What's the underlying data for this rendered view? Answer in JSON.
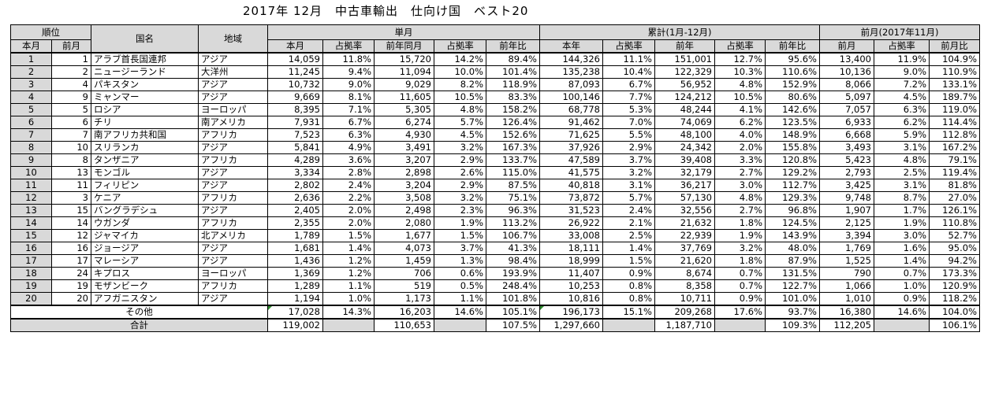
{
  "title": "2017年 12月　中古車輸出　仕向け国　ベスト20",
  "headers": {
    "rank": "順位",
    "country": "国名",
    "region": "地域",
    "monthly": "単月",
    "cumulative": "累計(1月-12月)",
    "prev_month": "前月(2017年11月)",
    "this_month": "本月",
    "last_month": "前月",
    "share": "占拠率",
    "prev_year_same_month": "前年同月",
    "yoy": "前年比",
    "this_year": "本年",
    "prev_year": "前年",
    "mom": "前月比"
  },
  "rows": [
    {
      "rank": "1",
      "prev_rank": "1",
      "country": "アラブ首長国連邦",
      "region": "アジア",
      "m_cur": "14,059",
      "m_share": "11.8%",
      "m_prev": "15,720",
      "m_prev_share": "14.2%",
      "m_yoy": "89.4%",
      "c_cur": "144,326",
      "c_share": "11.1%",
      "c_prev": "151,001",
      "c_prev_share": "12.7%",
      "c_yoy": "95.6%",
      "pm": "13,400",
      "pm_share": "11.9%",
      "pm_ratio": "104.9%"
    },
    {
      "rank": "2",
      "prev_rank": "2",
      "country": "ニュージーランド",
      "region": "大洋州",
      "m_cur": "11,245",
      "m_share": "9.4%",
      "m_prev": "11,094",
      "m_prev_share": "10.0%",
      "m_yoy": "101.4%",
      "c_cur": "135,238",
      "c_share": "10.4%",
      "c_prev": "122,329",
      "c_prev_share": "10.3%",
      "c_yoy": "110.6%",
      "pm": "10,136",
      "pm_share": "9.0%",
      "pm_ratio": "110.9%"
    },
    {
      "rank": "3",
      "prev_rank": "4",
      "country": "パキスタン",
      "region": "アジア",
      "m_cur": "10,732",
      "m_share": "9.0%",
      "m_prev": "9,029",
      "m_prev_share": "8.2%",
      "m_yoy": "118.9%",
      "c_cur": "87,093",
      "c_share": "6.7%",
      "c_prev": "56,952",
      "c_prev_share": "4.8%",
      "c_yoy": "152.9%",
      "pm": "8,066",
      "pm_share": "7.2%",
      "pm_ratio": "133.1%"
    },
    {
      "rank": "4",
      "prev_rank": "9",
      "country": "ミャンマー",
      "region": "アジア",
      "m_cur": "9,669",
      "m_share": "8.1%",
      "m_prev": "11,605",
      "m_prev_share": "10.5%",
      "m_yoy": "83.3%",
      "c_cur": "100,146",
      "c_share": "7.7%",
      "c_prev": "124,212",
      "c_prev_share": "10.5%",
      "c_yoy": "80.6%",
      "pm": "5,097",
      "pm_share": "4.5%",
      "pm_ratio": "189.7%"
    },
    {
      "rank": "5",
      "prev_rank": "5",
      "country": "ロシア",
      "region": "ヨーロッパ",
      "m_cur": "8,395",
      "m_share": "7.1%",
      "m_prev": "5,305",
      "m_prev_share": "4.8%",
      "m_yoy": "158.2%",
      "c_cur": "68,778",
      "c_share": "5.3%",
      "c_prev": "48,244",
      "c_prev_share": "4.1%",
      "c_yoy": "142.6%",
      "pm": "7,057",
      "pm_share": "6.3%",
      "pm_ratio": "119.0%"
    },
    {
      "rank": "6",
      "prev_rank": "6",
      "country": "チリ",
      "region": "南アメリカ",
      "m_cur": "7,931",
      "m_share": "6.7%",
      "m_prev": "6,274",
      "m_prev_share": "5.7%",
      "m_yoy": "126.4%",
      "c_cur": "91,462",
      "c_share": "7.0%",
      "c_prev": "74,069",
      "c_prev_share": "6.2%",
      "c_yoy": "123.5%",
      "pm": "6,933",
      "pm_share": "6.2%",
      "pm_ratio": "114.4%"
    },
    {
      "rank": "7",
      "prev_rank": "7",
      "country": "南アフリカ共和国",
      "region": "アフリカ",
      "m_cur": "7,523",
      "m_share": "6.3%",
      "m_prev": "4,930",
      "m_prev_share": "4.5%",
      "m_yoy": "152.6%",
      "c_cur": "71,625",
      "c_share": "5.5%",
      "c_prev": "48,100",
      "c_prev_share": "4.0%",
      "c_yoy": "148.9%",
      "pm": "6,668",
      "pm_share": "5.9%",
      "pm_ratio": "112.8%"
    },
    {
      "rank": "8",
      "prev_rank": "10",
      "country": "スリランカ",
      "region": "アジア",
      "m_cur": "5,841",
      "m_share": "4.9%",
      "m_prev": "3,491",
      "m_prev_share": "3.2%",
      "m_yoy": "167.3%",
      "c_cur": "37,926",
      "c_share": "2.9%",
      "c_prev": "24,342",
      "c_prev_share": "2.0%",
      "c_yoy": "155.8%",
      "pm": "3,493",
      "pm_share": "3.1%",
      "pm_ratio": "167.2%"
    },
    {
      "rank": "9",
      "prev_rank": "8",
      "country": "タンザニア",
      "region": "アフリカ",
      "m_cur": "4,289",
      "m_share": "3.6%",
      "m_prev": "3,207",
      "m_prev_share": "2.9%",
      "m_yoy": "133.7%",
      "c_cur": "47,589",
      "c_share": "3.7%",
      "c_prev": "39,408",
      "c_prev_share": "3.3%",
      "c_yoy": "120.8%",
      "pm": "5,423",
      "pm_share": "4.8%",
      "pm_ratio": "79.1%"
    },
    {
      "rank": "10",
      "prev_rank": "13",
      "country": "モンゴル",
      "region": "アジア",
      "m_cur": "3,334",
      "m_share": "2.8%",
      "m_prev": "2,898",
      "m_prev_share": "2.6%",
      "m_yoy": "115.0%",
      "c_cur": "41,575",
      "c_share": "3.2%",
      "c_prev": "32,179",
      "c_prev_share": "2.7%",
      "c_yoy": "129.2%",
      "pm": "2,793",
      "pm_share": "2.5%",
      "pm_ratio": "119.4%"
    },
    {
      "rank": "11",
      "prev_rank": "11",
      "country": "フィリピン",
      "region": "アジア",
      "m_cur": "2,802",
      "m_share": "2.4%",
      "m_prev": "3,204",
      "m_prev_share": "2.9%",
      "m_yoy": "87.5%",
      "c_cur": "40,818",
      "c_share": "3.1%",
      "c_prev": "36,217",
      "c_prev_share": "3.0%",
      "c_yoy": "112.7%",
      "pm": "3,425",
      "pm_share": "3.1%",
      "pm_ratio": "81.8%"
    },
    {
      "rank": "12",
      "prev_rank": "3",
      "country": "ケニア",
      "region": "アフリカ",
      "m_cur": "2,636",
      "m_share": "2.2%",
      "m_prev": "3,508",
      "m_prev_share": "3.2%",
      "m_yoy": "75.1%",
      "c_cur": "73,872",
      "c_share": "5.7%",
      "c_prev": "57,130",
      "c_prev_share": "4.8%",
      "c_yoy": "129.3%",
      "pm": "9,748",
      "pm_share": "8.7%",
      "pm_ratio": "27.0%"
    },
    {
      "rank": "13",
      "prev_rank": "15",
      "country": "バングラデシュ",
      "region": "アジア",
      "m_cur": "2,405",
      "m_share": "2.0%",
      "m_prev": "2,498",
      "m_prev_share": "2.3%",
      "m_yoy": "96.3%",
      "c_cur": "31,523",
      "c_share": "2.4%",
      "c_prev": "32,556",
      "c_prev_share": "2.7%",
      "c_yoy": "96.8%",
      "pm": "1,907",
      "pm_share": "1.7%",
      "pm_ratio": "126.1%"
    },
    {
      "rank": "14",
      "prev_rank": "14",
      "country": "ウガンダ",
      "region": "アフリカ",
      "m_cur": "2,355",
      "m_share": "2.0%",
      "m_prev": "2,080",
      "m_prev_share": "1.9%",
      "m_yoy": "113.2%",
      "c_cur": "26,922",
      "c_share": "2.1%",
      "c_prev": "21,632",
      "c_prev_share": "1.8%",
      "c_yoy": "124.5%",
      "pm": "2,125",
      "pm_share": "1.9%",
      "pm_ratio": "110.8%"
    },
    {
      "rank": "15",
      "prev_rank": "12",
      "country": "ジャマイカ",
      "region": "北アメリカ",
      "m_cur": "1,789",
      "m_share": "1.5%",
      "m_prev": "1,677",
      "m_prev_share": "1.5%",
      "m_yoy": "106.7%",
      "c_cur": "33,008",
      "c_share": "2.5%",
      "c_prev": "22,939",
      "c_prev_share": "1.9%",
      "c_yoy": "143.9%",
      "pm": "3,394",
      "pm_share": "3.0%",
      "pm_ratio": "52.7%"
    },
    {
      "rank": "16",
      "prev_rank": "16",
      "country": "ジョージア",
      "region": "アジア",
      "m_cur": "1,681",
      "m_share": "1.4%",
      "m_prev": "4,073",
      "m_prev_share": "3.7%",
      "m_yoy": "41.3%",
      "c_cur": "18,111",
      "c_share": "1.4%",
      "c_prev": "37,769",
      "c_prev_share": "3.2%",
      "c_yoy": "48.0%",
      "pm": "1,769",
      "pm_share": "1.6%",
      "pm_ratio": "95.0%"
    },
    {
      "rank": "17",
      "prev_rank": "17",
      "country": "マレーシア",
      "region": "アジア",
      "m_cur": "1,436",
      "m_share": "1.2%",
      "m_prev": "1,459",
      "m_prev_share": "1.3%",
      "m_yoy": "98.4%",
      "c_cur": "18,999",
      "c_share": "1.5%",
      "c_prev": "21,620",
      "c_prev_share": "1.8%",
      "c_yoy": "87.9%",
      "pm": "1,525",
      "pm_share": "1.4%",
      "pm_ratio": "94.2%"
    },
    {
      "rank": "18",
      "prev_rank": "24",
      "country": "キプロス",
      "region": "ヨーロッパ",
      "m_cur": "1,369",
      "m_share": "1.2%",
      "m_prev": "706",
      "m_prev_share": "0.6%",
      "m_yoy": "193.9%",
      "c_cur": "11,407",
      "c_share": "0.9%",
      "c_prev": "8,674",
      "c_prev_share": "0.7%",
      "c_yoy": "131.5%",
      "pm": "790",
      "pm_share": "0.7%",
      "pm_ratio": "173.3%"
    },
    {
      "rank": "19",
      "prev_rank": "19",
      "country": "モザンビーク",
      "region": "アフリカ",
      "m_cur": "1,289",
      "m_share": "1.1%",
      "m_prev": "519",
      "m_prev_share": "0.5%",
      "m_yoy": "248.4%",
      "c_cur": "10,253",
      "c_share": "0.8%",
      "c_prev": "8,358",
      "c_prev_share": "0.7%",
      "c_yoy": "122.7%",
      "pm": "1,066",
      "pm_share": "1.0%",
      "pm_ratio": "120.9%"
    },
    {
      "rank": "20",
      "prev_rank": "20",
      "country": "アフガニスタン",
      "region": "アジア",
      "m_cur": "1,194",
      "m_share": "1.0%",
      "m_prev": "1,173",
      "m_prev_share": "1.1%",
      "m_yoy": "101.8%",
      "c_cur": "10,816",
      "c_share": "0.8%",
      "c_prev": "10,711",
      "c_prev_share": "0.9%",
      "c_yoy": "101.0%",
      "pm": "1,010",
      "pm_share": "0.9%",
      "pm_ratio": "118.2%"
    }
  ],
  "others": {
    "label": "その他",
    "m_cur": "17,028",
    "m_share": "14.3%",
    "m_prev": "16,203",
    "m_prev_share": "14.6%",
    "m_yoy": "105.1%",
    "c_cur": "196,173",
    "c_share": "15.1%",
    "c_prev": "209,268",
    "c_prev_share": "17.6%",
    "c_yoy": "93.7%",
    "pm": "16,380",
    "pm_share": "14.6%",
    "pm_ratio": "104.0%"
  },
  "total": {
    "label": "合計",
    "m_cur": "119,002",
    "m_prev": "110,653",
    "m_yoy": "107.5%",
    "c_cur": "1,297,660",
    "c_prev": "1,187,710",
    "c_yoy": "109.3%",
    "pm": "112,205",
    "pm_ratio": "106.1%"
  },
  "colors": {
    "header_bg": "#d9d9d9",
    "error_triangle": "#2e8b2e"
  }
}
